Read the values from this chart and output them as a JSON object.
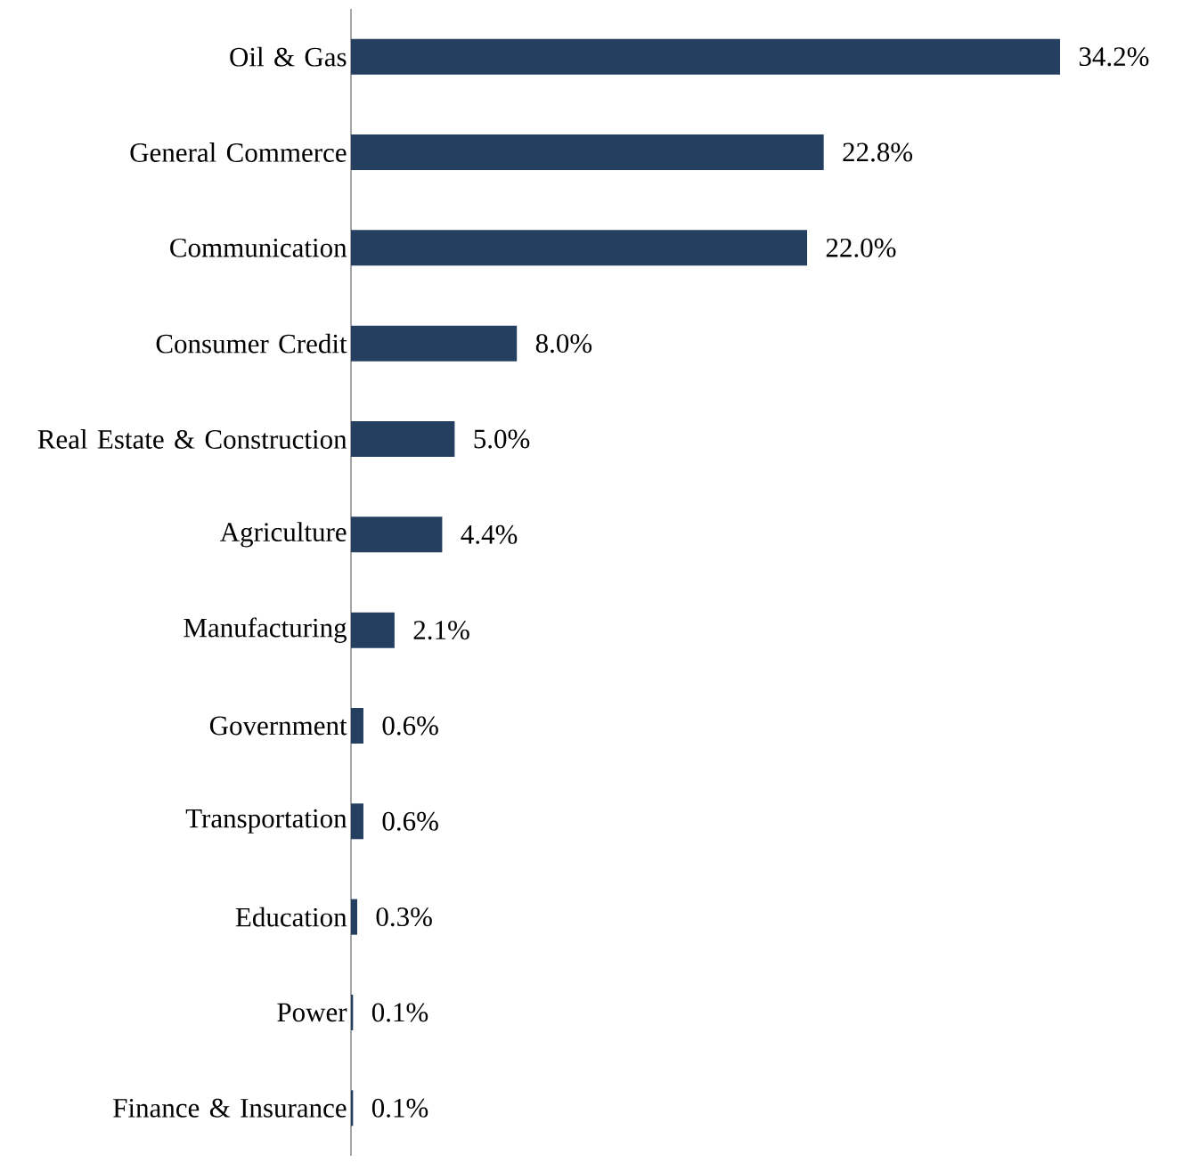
{
  "chart_data": {
    "type": "bar",
    "orientation": "horizontal",
    "color": "#243f60",
    "categories": [
      "Oil & Gas",
      "General Commerce",
      "Communication",
      "Consumer Credit",
      "Real Estate & Construction",
      "Agriculture",
      "Manufacturing",
      "Government",
      "Transportation",
      "Education",
      "Power",
      "Finance & Insurance"
    ],
    "values": [
      34.2,
      22.8,
      22.0,
      8.0,
      5.0,
      4.4,
      2.1,
      0.6,
      0.6,
      0.3,
      0.1,
      0.1
    ],
    "value_labels": [
      "34.2%",
      "22.8%",
      "22.0%",
      "8.0%",
      "5.0%",
      "4.4%",
      "2.1%",
      "0.6%",
      "0.6%",
      "0.3%",
      "0.1%",
      "0.1%"
    ]
  }
}
